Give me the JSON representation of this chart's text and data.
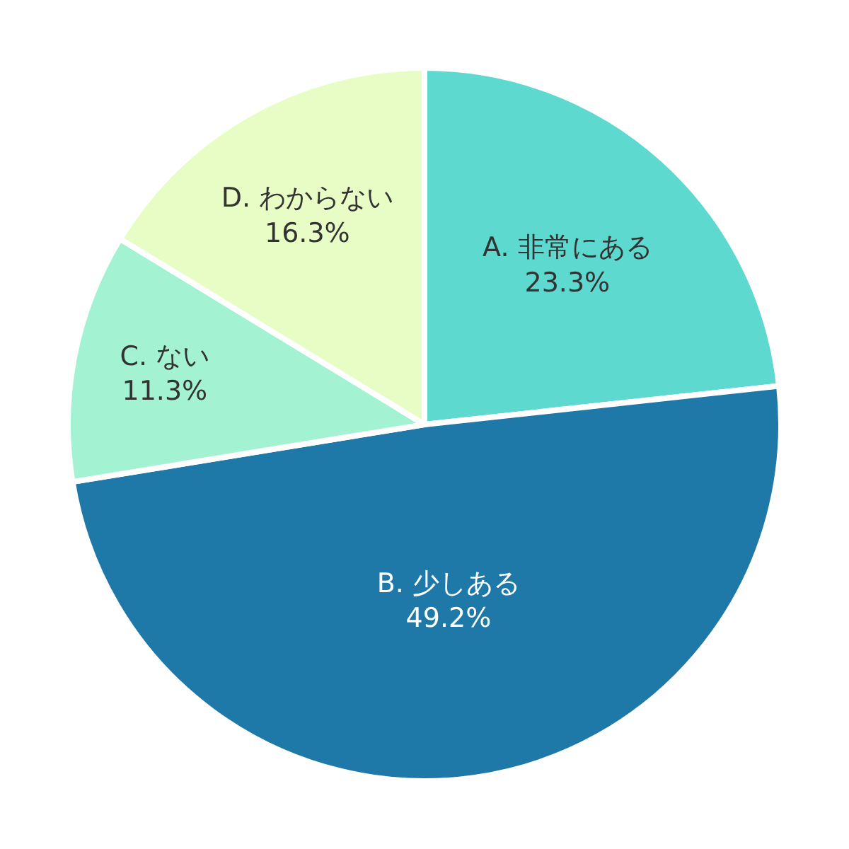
{
  "chart_data": {
    "type": "pie",
    "categories": [
      "A. 非常にある",
      "B. 少しある",
      "C. ない",
      "D. わからない"
    ],
    "values": [
      23.3,
      49.2,
      11.3,
      16.3
    ],
    "value_labels": [
      "23.3%",
      "49.2%",
      "11.3%",
      "16.3%"
    ],
    "colors": [
      "#5dd9cf",
      "#1e78a8",
      "#a3f2d2",
      "#e8fcc6"
    ],
    "legend": false
  }
}
